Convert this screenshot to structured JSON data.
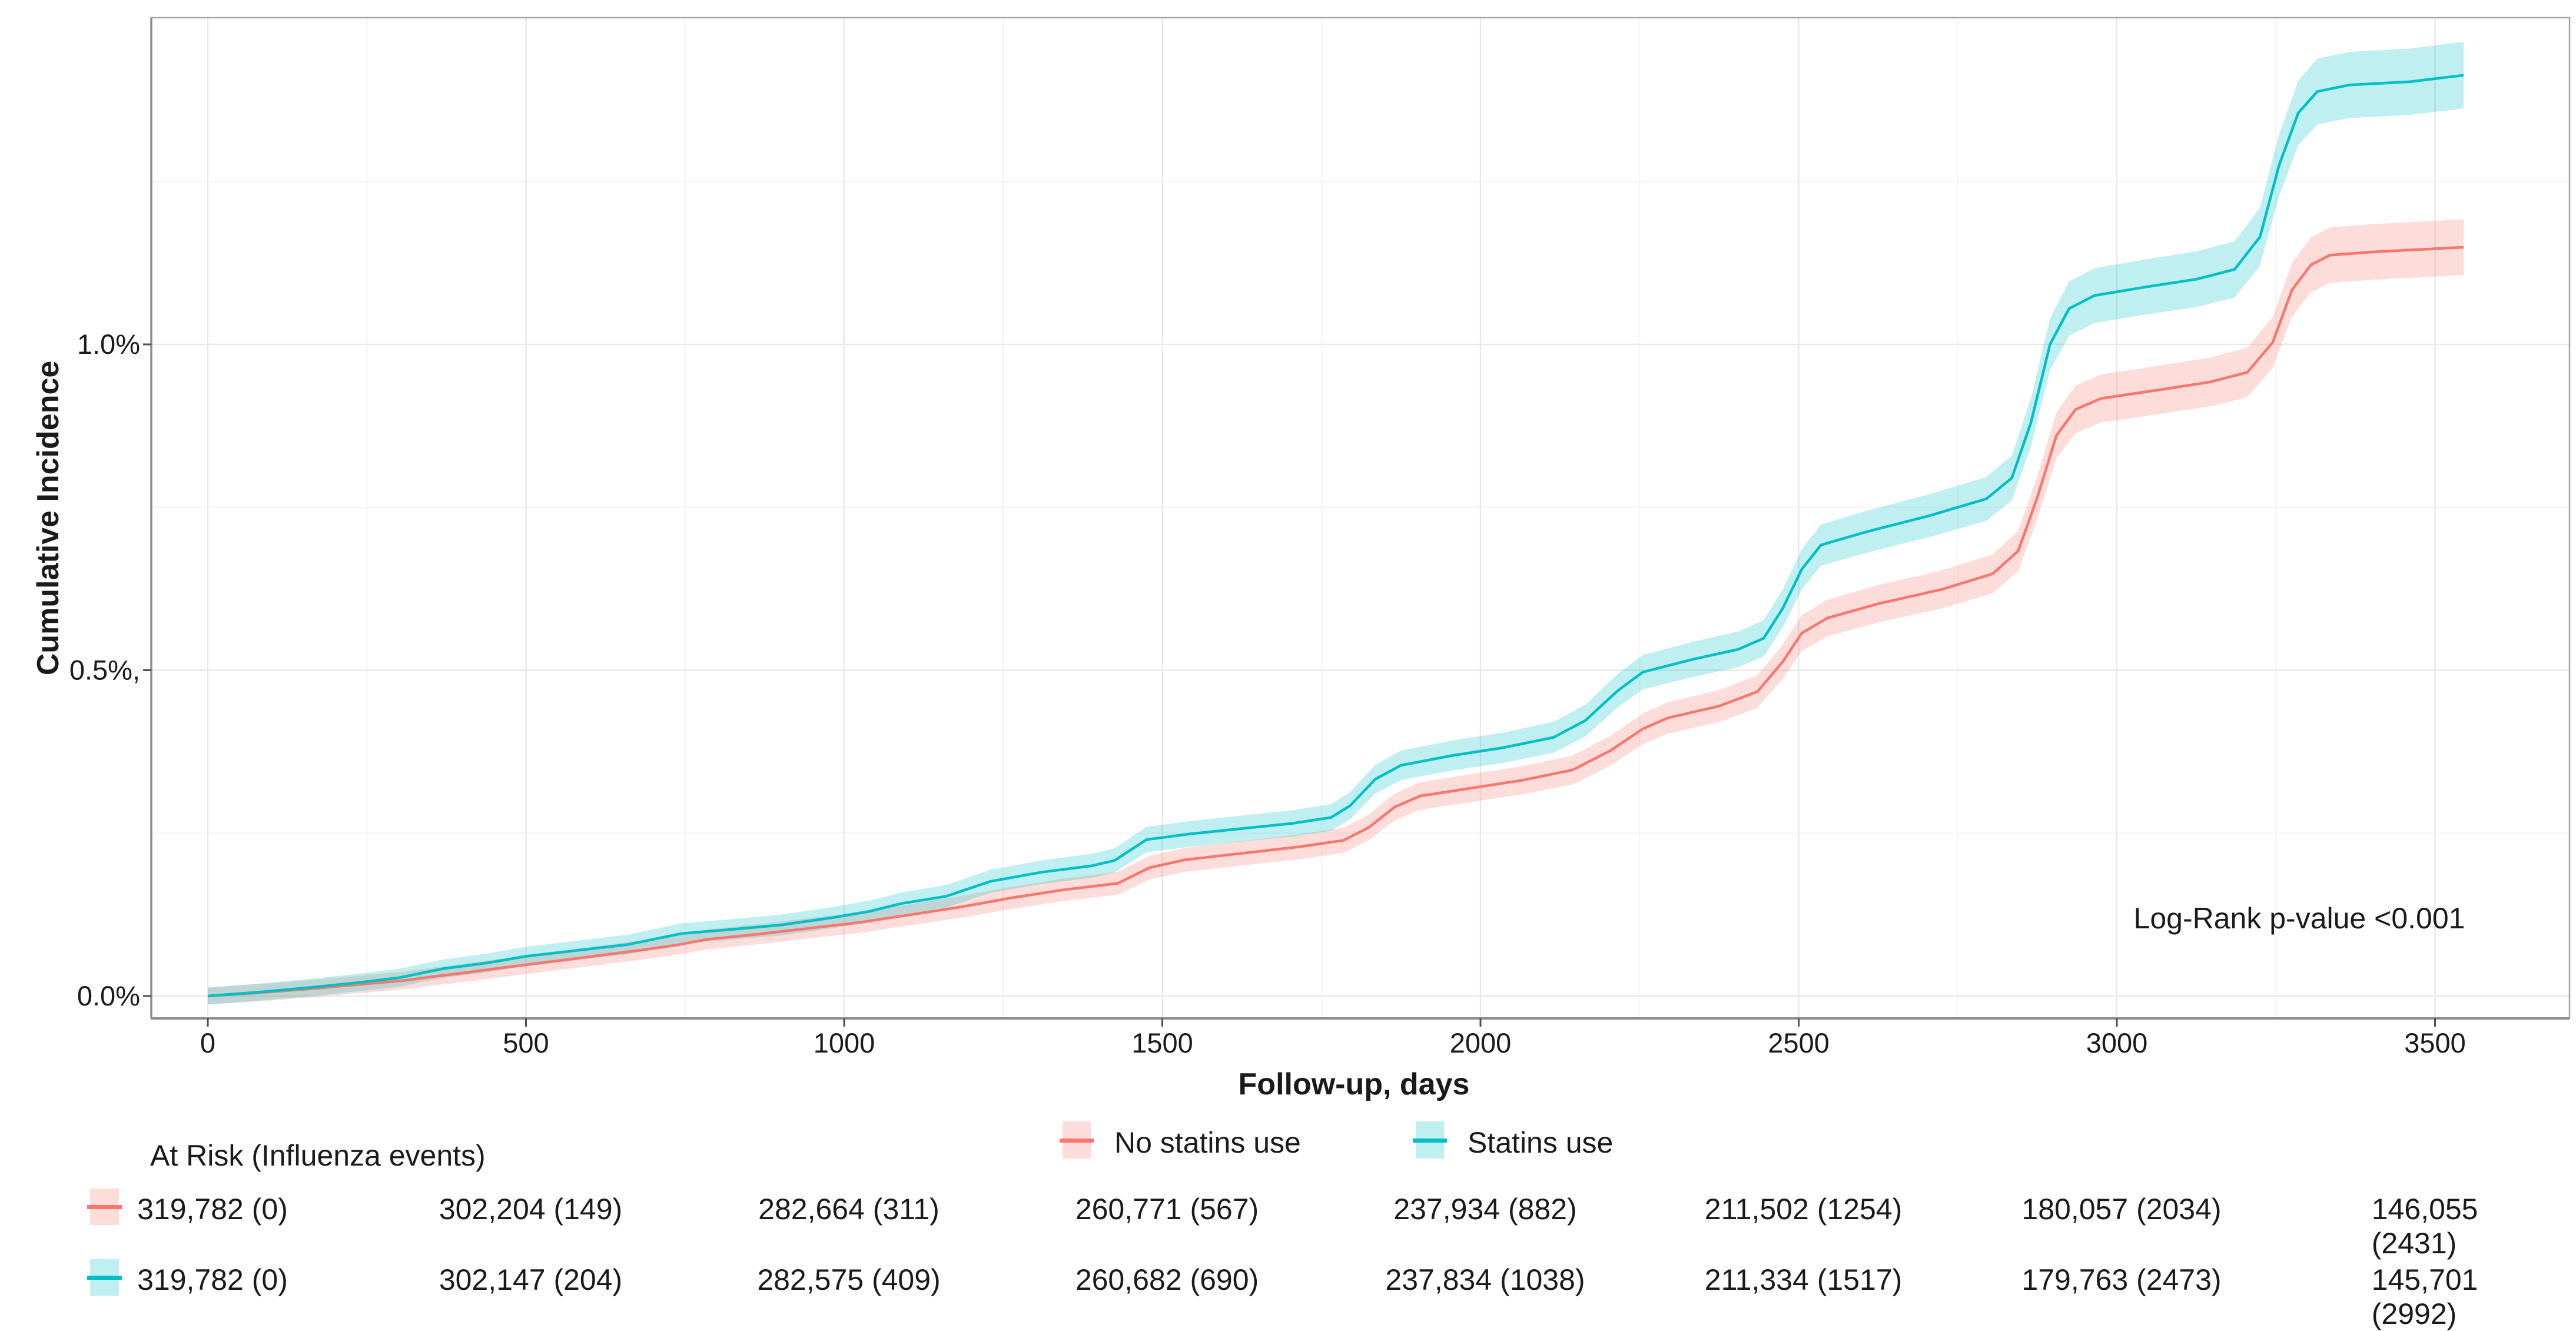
{
  "colors": {
    "no_statins_line": "#F8766D",
    "no_statins_band": "rgba(248,118,109,0.25)",
    "statins_line": "#00BFC4",
    "statins_band": "rgba(0,191,196,0.25)",
    "grid_major": "#e9e9e9",
    "grid_minor": "#f4f4f4",
    "panel_border": "#a6a6a6",
    "axis_line": "#8c8c8c",
    "tick_mark": "#4d4d4d",
    "text": "#1a1a1a"
  },
  "chart_data": {
    "type": "line",
    "title": "",
    "xlabel": "Follow-up, days",
    "ylabel": "Cumulative Incidence",
    "annotation": "Log-Rank p-value <0.001",
    "xlim": [
      -89,
      3711
    ],
    "ylim": [
      -0.034,
      1.501
    ],
    "grid": {
      "major": true,
      "minor": true,
      "legend_position": "bottom"
    },
    "x_ticks": [
      0,
      500,
      1000,
      1500,
      2000,
      2500,
      3000,
      3500
    ],
    "x_minor_ticks": [
      250,
      750,
      1250,
      1750,
      2250,
      2750,
      3250
    ],
    "y_ticks": [
      {
        "value": 0.0,
        "label": "0.0%"
      },
      {
        "value": 0.5,
        "label": "0.5%,"
      },
      {
        "value": 1.0,
        "label": "1.0%"
      }
    ],
    "y_minor_ticks": [
      0.25,
      0.75,
      1.25
    ],
    "y_unit": "percent",
    "series": [
      {
        "name": "No statins use",
        "color": "#F8766D",
        "band_color": "rgba(248,118,109,0.25)",
        "band_halfwidth": {
          "base": 0.013,
          "scale": 0.026
        },
        "points": [
          [
            0,
            0
          ],
          [
            80,
            0.005
          ],
          [
            160,
            0.011
          ],
          [
            240,
            0.018
          ],
          [
            310,
            0.024
          ],
          [
            355,
            0.03
          ],
          [
            390,
            0.034
          ],
          [
            460,
            0.043
          ],
          [
            525,
            0.051
          ],
          [
            605,
            0.061
          ],
          [
            685,
            0.071
          ],
          [
            735,
            0.078
          ],
          [
            785,
            0.087
          ],
          [
            865,
            0.095
          ],
          [
            945,
            0.104
          ],
          [
            1025,
            0.113
          ],
          [
            1105,
            0.125
          ],
          [
            1185,
            0.137
          ],
          [
            1265,
            0.151
          ],
          [
            1345,
            0.163
          ],
          [
            1430,
            0.173
          ],
          [
            1480,
            0.197
          ],
          [
            1535,
            0.209
          ],
          [
            1625,
            0.219
          ],
          [
            1715,
            0.229
          ],
          [
            1785,
            0.239
          ],
          [
            1825,
            0.259
          ],
          [
            1865,
            0.29
          ],
          [
            1905,
            0.307
          ],
          [
            1985,
            0.319
          ],
          [
            2065,
            0.331
          ],
          [
            2145,
            0.347
          ],
          [
            2205,
            0.377
          ],
          [
            2255,
            0.41
          ],
          [
            2295,
            0.427
          ],
          [
            2375,
            0.445
          ],
          [
            2435,
            0.467
          ],
          [
            2475,
            0.513
          ],
          [
            2505,
            0.557
          ],
          [
            2545,
            0.58
          ],
          [
            2625,
            0.602
          ],
          [
            2725,
            0.624
          ],
          [
            2805,
            0.648
          ],
          [
            2845,
            0.683
          ],
          [
            2875,
            0.765
          ],
          [
            2905,
            0.86
          ],
          [
            2935,
            0.9
          ],
          [
            2975,
            0.917
          ],
          [
            3065,
            0.93
          ],
          [
            3145,
            0.942
          ],
          [
            3205,
            0.957
          ],
          [
            3245,
            1.003
          ],
          [
            3275,
            1.083
          ],
          [
            3305,
            1.122
          ],
          [
            3335,
            1.137
          ],
          [
            3405,
            1.142
          ],
          [
            3485,
            1.146
          ],
          [
            3545,
            1.149
          ]
        ]
      },
      {
        "name": "Statins use",
        "color": "#00BFC4",
        "band_color": "rgba(0,191,196,0.25)",
        "band_halfwidth": {
          "base": 0.013,
          "scale": 0.027
        },
        "points": [
          [
            0,
            0
          ],
          [
            80,
            0.006
          ],
          [
            160,
            0.013
          ],
          [
            240,
            0.021
          ],
          [
            300,
            0.028
          ],
          [
            335,
            0.035
          ],
          [
            370,
            0.042
          ],
          [
            440,
            0.051
          ],
          [
            500,
            0.061
          ],
          [
            580,
            0.07
          ],
          [
            660,
            0.079
          ],
          [
            705,
            0.088
          ],
          [
            745,
            0.096
          ],
          [
            820,
            0.102
          ],
          [
            900,
            0.109
          ],
          [
            980,
            0.12
          ],
          [
            1040,
            0.13
          ],
          [
            1090,
            0.142
          ],
          [
            1160,
            0.153
          ],
          [
            1230,
            0.176
          ],
          [
            1310,
            0.19
          ],
          [
            1390,
            0.2
          ],
          [
            1425,
            0.208
          ],
          [
            1475,
            0.24
          ],
          [
            1545,
            0.249
          ],
          [
            1625,
            0.257
          ],
          [
            1705,
            0.265
          ],
          [
            1765,
            0.274
          ],
          [
            1795,
            0.292
          ],
          [
            1835,
            0.333
          ],
          [
            1875,
            0.354
          ],
          [
            1955,
            0.369
          ],
          [
            2035,
            0.381
          ],
          [
            2115,
            0.397
          ],
          [
            2165,
            0.423
          ],
          [
            2215,
            0.468
          ],
          [
            2255,
            0.497
          ],
          [
            2335,
            0.517
          ],
          [
            2405,
            0.532
          ],
          [
            2445,
            0.549
          ],
          [
            2475,
            0.595
          ],
          [
            2505,
            0.655
          ],
          [
            2535,
            0.692
          ],
          [
            2605,
            0.712
          ],
          [
            2705,
            0.737
          ],
          [
            2795,
            0.763
          ],
          [
            2835,
            0.795
          ],
          [
            2865,
            0.88
          ],
          [
            2895,
            1.0
          ],
          [
            2925,
            1.055
          ],
          [
            2965,
            1.075
          ],
          [
            3045,
            1.088
          ],
          [
            3125,
            1.1
          ],
          [
            3185,
            1.115
          ],
          [
            3225,
            1.165
          ],
          [
            3255,
            1.275
          ],
          [
            3285,
            1.355
          ],
          [
            3315,
            1.388
          ],
          [
            3365,
            1.398
          ],
          [
            3460,
            1.403
          ],
          [
            3545,
            1.413
          ]
        ]
      }
    ]
  },
  "labels": {
    "ylabel": "Cumulative Incidence",
    "xlabel": "Follow-up, days",
    "log_rank": "Log-Rank p-value <0.001"
  },
  "legend": {
    "items": [
      {
        "label": "No statins use",
        "line": "#F8766D",
        "band": "rgba(248,118,109,0.25)"
      },
      {
        "label": "Statins use",
        "line": "#00BFC4",
        "band": "rgba(0,191,196,0.25)"
      }
    ]
  },
  "at_risk": {
    "header": "At Risk (Influenza events)",
    "days": [
      0,
      500,
      1000,
      1500,
      2000,
      2500,
      3000,
      3500
    ],
    "rows": [
      {
        "series": "No statins use",
        "line": "#F8766D",
        "band": "rgba(248,118,109,0.25)",
        "values": [
          "319,782 (0)",
          "302,204 (149)",
          "282,664 (311)",
          "260,771 (567)",
          "237,934 (882)",
          "211,502 (1254)",
          "180,057 (2034)",
          "146,055 (2431)"
        ]
      },
      {
        "series": "Statins use",
        "line": "#00BFC4",
        "band": "rgba(0,191,196,0.25)",
        "values": [
          "319,782 (0)",
          "302,147 (204)",
          "282,575 (409)",
          "260,682 (690)",
          "237,834 (1038)",
          "211,334 (1517)",
          "179,763 (2473)",
          "145,701 (2992)"
        ]
      }
    ]
  }
}
